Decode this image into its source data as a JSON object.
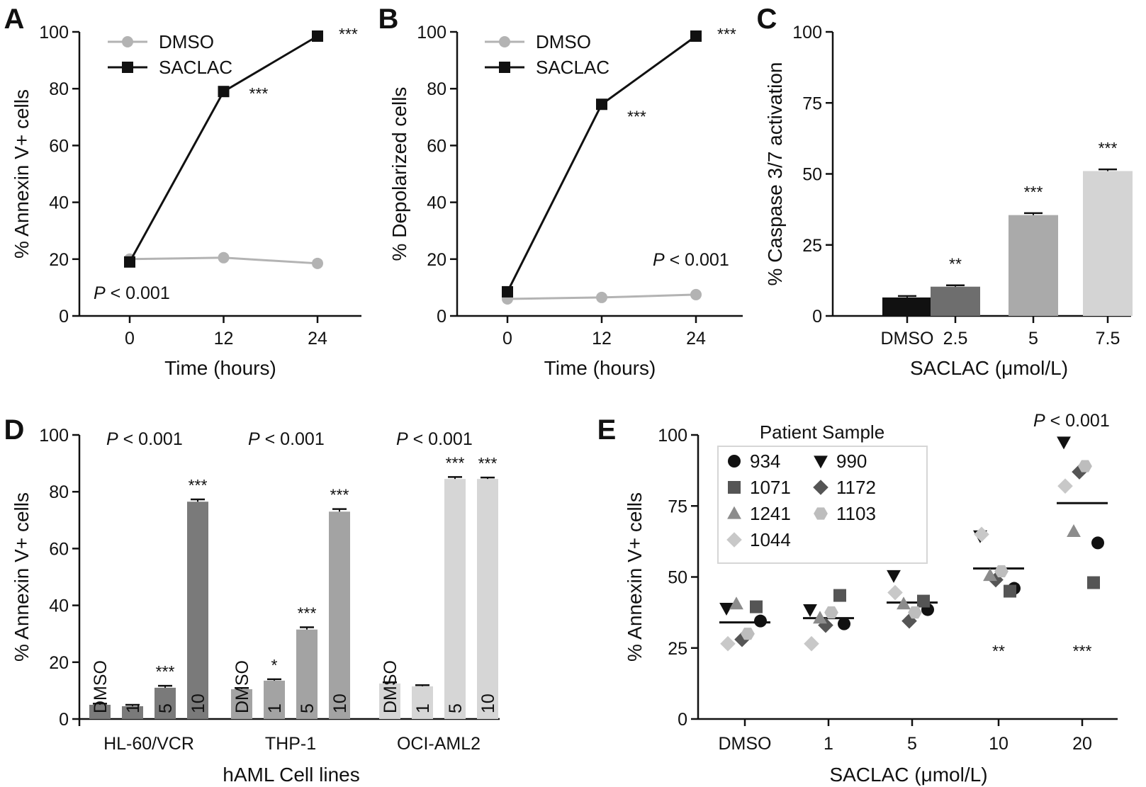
{
  "chart_data": [
    {
      "panel": "A",
      "type": "line",
      "x": [
        0,
        12,
        24
      ],
      "xticks": [
        "0",
        "12",
        "24"
      ],
      "xlabel": "Time (hours)",
      "ylabel": "% Annexin V+ cells",
      "ylim": [
        0,
        100
      ],
      "yticks": [
        "0",
        "20",
        "40",
        "60",
        "80",
        "100"
      ],
      "legend": "top-left",
      "series": [
        {
          "name": "DMSO",
          "values": [
            20,
            20.5,
            18.5
          ],
          "color": "#b3b3b3",
          "marker": "circle"
        },
        {
          "name": "SACLAC",
          "values": [
            19,
            79,
            98.5
          ],
          "color": "#111111",
          "marker": "square"
        }
      ],
      "annotations": [
        "***",
        "***"
      ],
      "p_prefix": "P",
      "p_text": " < 0.001"
    },
    {
      "panel": "B",
      "type": "line",
      "x": [
        0,
        12,
        24
      ],
      "xticks": [
        "0",
        "12",
        "24"
      ],
      "xlabel": "Time (hours)",
      "ylabel": "% Depolarized cells",
      "ylim": [
        0,
        100
      ],
      "yticks": [
        "0",
        "20",
        "40",
        "60",
        "80",
        "100"
      ],
      "legend": "top-left",
      "series": [
        {
          "name": "DMSO",
          "values": [
            6,
            6.5,
            7.5
          ],
          "color": "#b3b3b3",
          "marker": "circle"
        },
        {
          "name": "SACLAC",
          "values": [
            8.5,
            74.5,
            98.5
          ],
          "color": "#111111",
          "marker": "square"
        }
      ],
      "annotations": [
        "***",
        "***"
      ],
      "p_prefix": "P",
      "p_text": " < 0.001"
    },
    {
      "panel": "C",
      "type": "bar",
      "categories": [
        "DMSO",
        "2.5",
        "5",
        "7.5"
      ],
      "values": [
        6.5,
        10.3,
        35.5,
        51
      ],
      "errors": [
        0.5,
        0.5,
        0.7,
        0.6
      ],
      "colors": [
        "#111111",
        "#6e6e6e",
        "#aaaaaa",
        "#d4d4d4"
      ],
      "annotations": [
        "",
        "**",
        "***",
        "***"
      ],
      "xlabel": "SACLAC (μmol/L)",
      "ylabel": "% Caspase 3/7 activation",
      "ylim": [
        0,
        100
      ],
      "yticks": [
        "0",
        "25",
        "50",
        "75",
        "100"
      ]
    },
    {
      "panel": "D",
      "type": "bar",
      "groups": [
        {
          "name": "HL-60/VCR",
          "color": "#7a7a7a",
          "bar_labels": [
            "DMSO",
            "1",
            "5",
            "10"
          ],
          "values": [
            5,
            4.5,
            11,
            76.5
          ],
          "errors": [
            0.4,
            0.5,
            0.7,
            0.8
          ],
          "annotations": [
            "",
            "",
            "***",
            "***"
          ]
        },
        {
          "name": "THP-1",
          "color": "#a3a3a3",
          "bar_labels": [
            "DMSO",
            "1",
            "5",
            "10"
          ],
          "values": [
            10.5,
            13.5,
            31.5,
            73
          ],
          "errors": [
            0.4,
            0.5,
            0.8,
            0.9
          ],
          "annotations": [
            "",
            "*",
            "***",
            "***"
          ]
        },
        {
          "name": "OCI-AML2",
          "color": "#d6d6d6",
          "bar_labels": [
            "DMSO",
            "1",
            "5",
            "10"
          ],
          "values": [
            12.5,
            11.5,
            84.5,
            84.5
          ],
          "errors": [
            0.4,
            0.4,
            0.7,
            0.5
          ],
          "annotations": [
            "",
            "",
            "***",
            "***"
          ]
        }
      ],
      "xlabel": "hAML Cell lines",
      "ylabel": "% Annexin V+ cells",
      "ylim": [
        0,
        100
      ],
      "yticks": [
        "0",
        "20",
        "40",
        "60",
        "80",
        "100"
      ],
      "p_prefix": "P",
      "p_text": " < 0.001"
    },
    {
      "panel": "E",
      "type": "scatter",
      "categories": [
        "DMSO",
        "1",
        "5",
        "10",
        "20"
      ],
      "legend_title": "Patient Sample",
      "legend": "top-left",
      "series": [
        {
          "name": "934",
          "marker": "circle",
          "color": "#111111",
          "values": [
            34.5,
            33.5,
            38.5,
            46,
            62
          ]
        },
        {
          "name": "990",
          "marker": "triangle-down",
          "color": "#111111",
          "values": [
            39,
            38.5,
            50.5,
            64.5,
            97.5
          ]
        },
        {
          "name": "1071",
          "marker": "square",
          "color": "#555555",
          "values": [
            39.5,
            43.5,
            41.5,
            45,
            48
          ]
        },
        {
          "name": "1172",
          "marker": "diamond",
          "color": "#555555",
          "values": [
            28,
            33,
            34.5,
            49,
            87
          ]
        },
        {
          "name": "1241",
          "marker": "triangle-up",
          "color": "#8c8c8c",
          "values": [
            40.5,
            35.5,
            40.5,
            50.5,
            66
          ]
        },
        {
          "name": "1103",
          "marker": "hexagon",
          "color": "#bdbdbd",
          "values": [
            30,
            37.5,
            37.5,
            52,
            89
          ]
        },
        {
          "name": "1044",
          "marker": "diamond",
          "color": "#c8c8c8",
          "values": [
            26.5,
            26.5,
            44.5,
            65,
            82
          ]
        }
      ],
      "means": [
        34,
        35.5,
        41,
        53,
        76
      ],
      "annotations": [
        "",
        "",
        "",
        "**",
        "***"
      ],
      "xlabel": "SACLAC (μmol/L)",
      "ylabel": "% Annexin V+ cells",
      "ylim": [
        0,
        100
      ],
      "yticks": [
        "0",
        "25",
        "50",
        "75",
        "100"
      ],
      "p_prefix": "P",
      "p_text": " < 0.001"
    }
  ]
}
